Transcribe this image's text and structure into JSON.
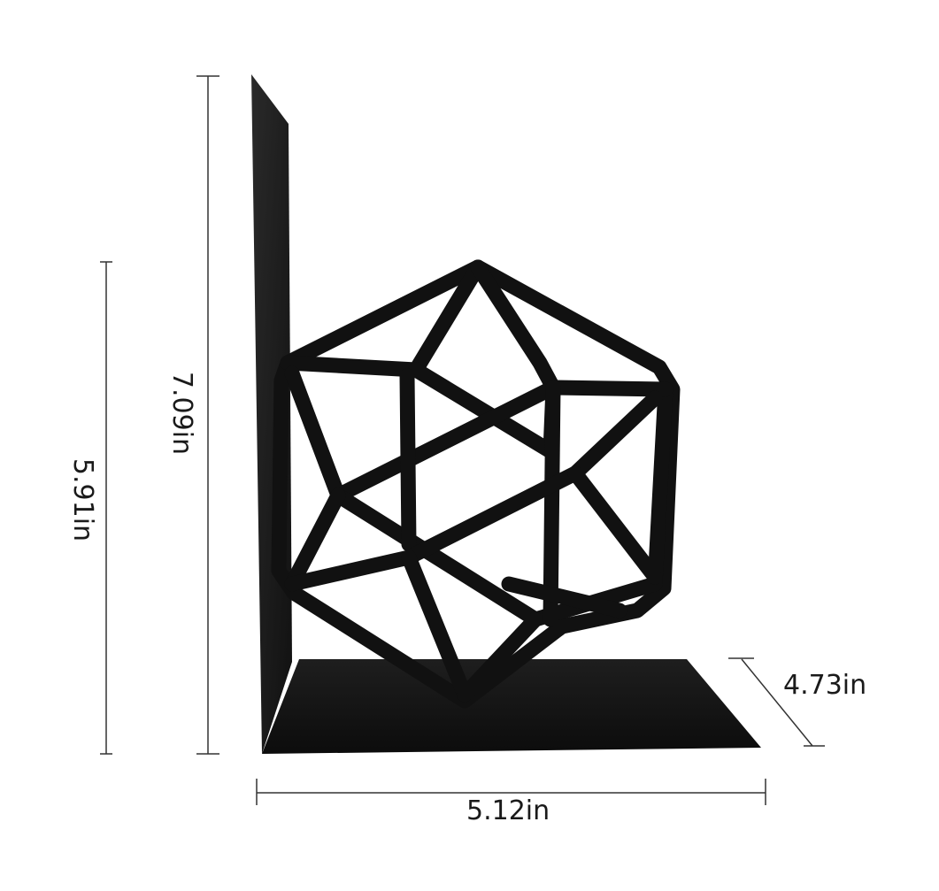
{
  "product": {
    "name": "geometric metal bookend",
    "color": "#111111",
    "background": "#ffffff"
  },
  "dimensions": {
    "total_height": "7.09in",
    "sculpture_height": "5.91in",
    "width": "5.12in",
    "depth": "4.73in"
  }
}
